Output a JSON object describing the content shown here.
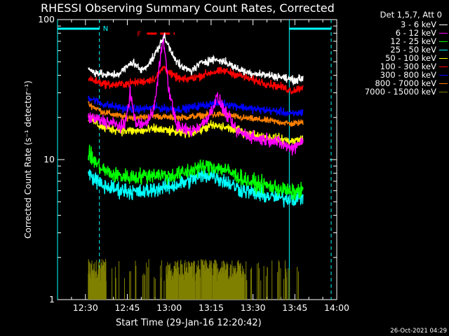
{
  "chart_data": {
    "type": "line",
    "title": "RHESSI Observing Summary Count Rates, Corrected",
    "xlabel": "Start Time (29-Jan-16 12:20:42)",
    "ylabel": "Corrected Count Rate (s⁻¹ detector⁻¹)",
    "y_scale": "log",
    "ylim": [
      1,
      100
    ],
    "y_ticks": [
      {
        "value": 1,
        "label": "1"
      },
      {
        "value": 10,
        "label": "10"
      },
      {
        "value": 100,
        "label": "100"
      }
    ],
    "xlim": [
      "12:20",
      "14:00"
    ],
    "x_ticks": [
      "12:30",
      "12:45",
      "13:00",
      "13:15",
      "13:30",
      "13:45",
      "14:00"
    ],
    "legend_header": "Det 1,5,7, Att 0",
    "legend_position": "top-right, outside plot",
    "annotations": {
      "night_label": "N",
      "flare_label": "F"
    },
    "night_intervals": [
      [
        "12:20",
        "12:35"
      ],
      [
        "13:43",
        "13:58"
      ]
    ],
    "flare_interval": [
      "12:52",
      "13:02"
    ],
    "data_start": "12:31",
    "data_end": "13:48",
    "timestamp": "26-Oct-2021 04:29",
    "series": [
      {
        "name": "3 - 6 keV",
        "color": "#ffffff",
        "values": [
          [
            "12:31",
            44
          ],
          [
            "12:37",
            40
          ],
          [
            "12:42",
            41
          ],
          [
            "12:47",
            50
          ],
          [
            "12:50",
            43
          ],
          [
            "12:54",
            52
          ],
          [
            "12:56",
            62
          ],
          [
            "12:58",
            76
          ],
          [
            "13:01",
            58
          ],
          [
            "13:04",
            46
          ],
          [
            "13:08",
            43
          ],
          [
            "13:12",
            50
          ],
          [
            "13:16",
            52
          ],
          [
            "13:20",
            50
          ],
          [
            "13:24",
            45
          ],
          [
            "13:28",
            42
          ],
          [
            "13:32",
            41
          ],
          [
            "13:36",
            40
          ],
          [
            "13:40",
            39
          ],
          [
            "13:44",
            37
          ],
          [
            "13:48",
            38
          ]
        ]
      },
      {
        "name": "6 - 12 keV",
        "color": "#ff00ff",
        "values": [
          [
            "12:31",
            20
          ],
          [
            "12:36",
            19
          ],
          [
            "12:40",
            18
          ],
          [
            "12:44",
            17
          ],
          [
            "12:46",
            30
          ],
          [
            "12:48",
            18
          ],
          [
            "12:52",
            18
          ],
          [
            "12:55",
            26
          ],
          [
            "12:57",
            58
          ],
          [
            "12:58",
            72
          ],
          [
            "13:00",
            30
          ],
          [
            "13:03",
            17
          ],
          [
            "13:08",
            16
          ],
          [
            "13:12",
            18
          ],
          [
            "13:15",
            22
          ],
          [
            "13:17",
            28
          ],
          [
            "13:20",
            22
          ],
          [
            "13:24",
            16
          ],
          [
            "13:28",
            15
          ],
          [
            "13:32",
            14
          ],
          [
            "13:36",
            14
          ],
          [
            "13:40",
            13
          ],
          [
            "13:44",
            12
          ],
          [
            "13:48",
            14
          ]
        ]
      },
      {
        "name": "12 - 25 keV",
        "color": "#00ff00",
        "values": [
          [
            "12:31",
            11
          ],
          [
            "12:36",
            8.5
          ],
          [
            "12:40",
            7.8
          ],
          [
            "12:45",
            7.5
          ],
          [
            "12:50",
            7.6
          ],
          [
            "12:55",
            7.9
          ],
          [
            "13:00",
            7.6
          ],
          [
            "13:05",
            8.0
          ],
          [
            "13:10",
            8.7
          ],
          [
            "13:15",
            9.0
          ],
          [
            "13:20",
            8.5
          ],
          [
            "13:25",
            7.5
          ],
          [
            "13:30",
            6.8
          ],
          [
            "13:35",
            6.5
          ],
          [
            "13:40",
            6.2
          ],
          [
            "13:44",
            5.8
          ],
          [
            "13:48",
            6.0
          ]
        ]
      },
      {
        "name": "25 - 50 keV",
        "color": "#00ffff",
        "values": [
          [
            "12:31",
            8.0
          ],
          [
            "12:36",
            6.5
          ],
          [
            "12:40",
            6.2
          ],
          [
            "12:45",
            6.0
          ],
          [
            "12:50",
            5.8
          ],
          [
            "12:55",
            6.2
          ],
          [
            "13:00",
            6.4
          ],
          [
            "13:05",
            6.8
          ],
          [
            "13:10",
            7.5
          ],
          [
            "13:15",
            7.8
          ],
          [
            "13:20",
            7.0
          ],
          [
            "13:25",
            6.2
          ],
          [
            "13:30",
            5.8
          ],
          [
            "13:35",
            5.5
          ],
          [
            "13:40",
            5.3
          ],
          [
            "13:44",
            5.3
          ],
          [
            "13:48",
            5.4
          ]
        ]
      },
      {
        "name": "50 - 100 keV",
        "color": "#ffff00",
        "values": [
          [
            "12:31",
            20
          ],
          [
            "12:36",
            17
          ],
          [
            "12:40",
            16.5
          ],
          [
            "12:45",
            16
          ],
          [
            "12:50",
            16
          ],
          [
            "12:55",
            16.5
          ],
          [
            "13:00",
            16
          ],
          [
            "13:05",
            15.5
          ],
          [
            "13:10",
            16
          ],
          [
            "13:15",
            17.5
          ],
          [
            "13:20",
            17
          ],
          [
            "13:25",
            16
          ],
          [
            "13:30",
            15
          ],
          [
            "13:35",
            14.5
          ],
          [
            "13:40",
            14
          ],
          [
            "13:44",
            13.5
          ],
          [
            "13:48",
            14
          ]
        ]
      },
      {
        "name": "100 - 300 keV",
        "color": "#ff0000",
        "values": [
          [
            "12:31",
            38
          ],
          [
            "12:36",
            35
          ],
          [
            "12:40",
            34
          ],
          [
            "12:45",
            35
          ],
          [
            "12:50",
            36
          ],
          [
            "12:55",
            38
          ],
          [
            "12:58",
            46
          ],
          [
            "13:01",
            40
          ],
          [
            "13:05",
            37
          ],
          [
            "13:10",
            39
          ],
          [
            "13:15",
            42
          ],
          [
            "13:20",
            43
          ],
          [
            "13:25",
            40
          ],
          [
            "13:30",
            37
          ],
          [
            "13:35",
            35
          ],
          [
            "13:40",
            33
          ],
          [
            "13:44",
            31
          ],
          [
            "13:48",
            33
          ]
        ]
      },
      {
        "name": "300 - 800 keV",
        "color": "#0000ff",
        "values": [
          [
            "12:31",
            28
          ],
          [
            "12:36",
            25
          ],
          [
            "12:40",
            24
          ],
          [
            "12:45",
            23
          ],
          [
            "12:50",
            23
          ],
          [
            "12:55",
            23.5
          ],
          [
            "13:00",
            23
          ],
          [
            "13:05",
            23
          ],
          [
            "13:10",
            24
          ],
          [
            "13:15",
            25
          ],
          [
            "13:20",
            25
          ],
          [
            "13:25",
            24
          ],
          [
            "13:30",
            23
          ],
          [
            "13:35",
            22.5
          ],
          [
            "13:40",
            22
          ],
          [
            "13:44",
            21
          ],
          [
            "13:48",
            22
          ]
        ]
      },
      {
        "name": "800 - 7000 keV",
        "color": "#ff8000",
        "values": [
          [
            "12:31",
            25
          ],
          [
            "12:36",
            22
          ],
          [
            "12:40",
            21
          ],
          [
            "12:45",
            20
          ],
          [
            "12:50",
            20
          ],
          [
            "12:55",
            20.5
          ],
          [
            "13:00",
            20
          ],
          [
            "13:05",
            20
          ],
          [
            "13:10",
            20.5
          ],
          [
            "13:15",
            21
          ],
          [
            "13:20",
            21
          ],
          [
            "13:25",
            20
          ],
          [
            "13:30",
            19.5
          ],
          [
            "13:35",
            19
          ],
          [
            "13:40",
            18.5
          ],
          [
            "13:44",
            18
          ],
          [
            "13:48",
            18.5
          ]
        ]
      },
      {
        "name": "7000 - 15000 keV",
        "color": "#808000",
        "values": [
          [
            "12:31",
            1.6
          ],
          [
            "12:34",
            1.4
          ],
          [
            "12:38",
            1.0
          ],
          [
            "12:45",
            1.0
          ],
          [
            "12:52",
            1.0
          ],
          [
            "12:58",
            1.0
          ],
          [
            "13:04",
            1.4
          ],
          [
            "13:08",
            1.5
          ],
          [
            "13:12",
            1.6
          ],
          [
            "13:16",
            1.5
          ],
          [
            "13:20",
            1.4
          ],
          [
            "13:24",
            1.2
          ],
          [
            "13:28",
            1.0
          ],
          [
            "13:36",
            1.0
          ],
          [
            "13:42",
            1.0
          ],
          [
            "13:48",
            1.0
          ]
        ]
      }
    ]
  }
}
